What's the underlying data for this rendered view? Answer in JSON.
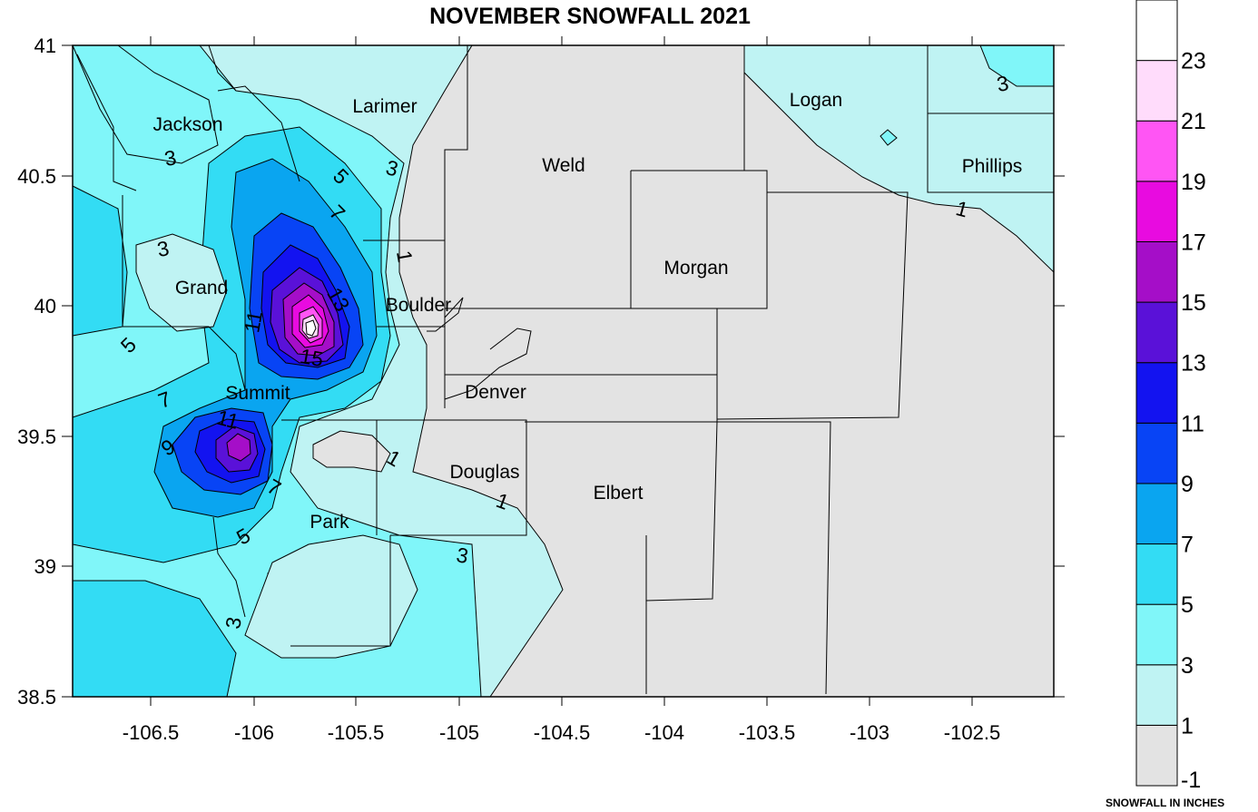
{
  "title": "NOVEMBER SNOWFALL 2021",
  "legend": {
    "caption": "SNOWFALL IN INCHES",
    "levels": [
      {
        "label": "-1",
        "color": "#e3e3e3"
      },
      {
        "label": "1",
        "color": "#bff3f3"
      },
      {
        "label": "3",
        "color": "#80f6f9"
      },
      {
        "label": "5",
        "color": "#33dcf4"
      },
      {
        "label": "7",
        "color": "#0aa5f0"
      },
      {
        "label": "9",
        "color": "#0844f5"
      },
      {
        "label": "11",
        "color": "#1313f0"
      },
      {
        "label": "13",
        "color": "#5a11d8"
      },
      {
        "label": "15",
        "color": "#a50ec8"
      },
      {
        "label": "17",
        "color": "#e80be0"
      },
      {
        "label": "19",
        "color": "#ff55f4"
      },
      {
        "label": "21",
        "color": "#ffdcfb"
      },
      {
        "label": "23",
        "color": "#ffffff"
      }
    ]
  },
  "axes": {
    "x_ticks": [
      "-106.5",
      "-106",
      "-105.5",
      "-105",
      "-104.5",
      "-104",
      "-103.5",
      "-103",
      "-102.5"
    ],
    "y_ticks": [
      "41",
      "40.5",
      "40",
      "39.5",
      "39",
      "38.5"
    ]
  },
  "counties": [
    "Jackson",
    "Larimer",
    "Weld",
    "Logan",
    "Phillips",
    "Grand",
    "Morgan",
    "Boulder",
    "Summit",
    "Denver",
    "Douglas",
    "Elbert",
    "Park"
  ],
  "contour_labels": [
    "3",
    "3",
    "5",
    "7",
    "3",
    "1",
    "3",
    "13",
    "11",
    "15",
    "5",
    "7",
    "11",
    "9",
    "7",
    "5",
    "3",
    "1",
    "1",
    "3",
    "3",
    "1"
  ]
}
